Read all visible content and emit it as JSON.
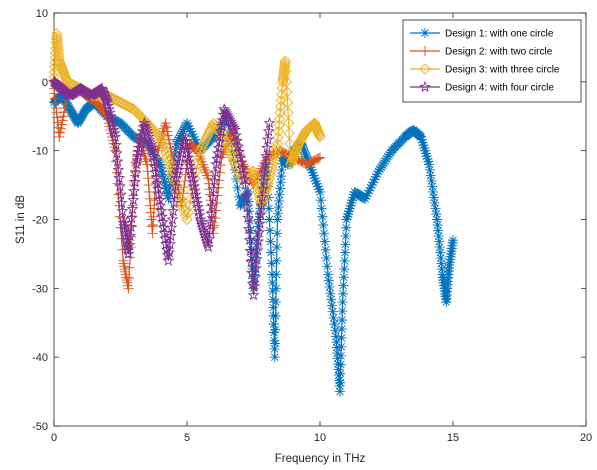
{
  "chart_data": {
    "type": "line",
    "title": "",
    "xlabel": "Frequency in THz",
    "ylabel": "S11 in dB",
    "xlim": [
      0,
      20
    ],
    "ylim": [
      -50,
      10
    ],
    "xticks": [
      0,
      5,
      10,
      15,
      20
    ],
    "yticks": [
      -50,
      -40,
      -30,
      -20,
      -10,
      0,
      10
    ],
    "grid": false,
    "legend_position": "top-right",
    "series": [
      {
        "name": "Design 1: with one circle",
        "color": "#0072BD",
        "marker": "asterisk",
        "x": [
          0,
          0.3,
          0.6,
          0.9,
          1.2,
          1.5,
          2.0,
          2.5,
          3.0,
          3.5,
          4.0,
          4.3,
          4.6,
          5.0,
          5.5,
          6.0,
          6.5,
          7.0,
          7.3,
          7.5,
          7.7,
          8.0,
          8.2,
          8.3,
          8.4,
          8.6,
          8.8,
          9.0,
          9.3,
          9.6,
          10.0,
          10.3,
          10.6,
          10.75,
          10.85,
          11.0,
          11.3,
          11.7,
          12.2,
          12.7,
          13.2,
          13.5,
          13.8,
          14.1,
          14.4,
          14.6,
          14.75,
          14.85,
          15.0
        ],
        "y": [
          -3,
          -2,
          -4,
          -6,
          -4,
          -3,
          -5,
          -6,
          -8,
          -9,
          -12,
          -17,
          -9,
          -6,
          -10,
          -8,
          -5,
          -18,
          -16,
          -30,
          -20,
          -12,
          -28,
          -40,
          -20,
          -11,
          -12,
          -10,
          -9,
          -12,
          -16,
          -28,
          -37,
          -45,
          -32,
          -20,
          -16,
          -17,
          -13,
          -10,
          -8,
          -7,
          -8,
          -12,
          -20,
          -28,
          -32,
          -27,
          -23
        ]
      },
      {
        "name": "Design 2: with two circle",
        "color": "#D95319",
        "marker": "plus",
        "x": [
          0,
          0.2,
          0.5,
          0.9,
          1.2,
          1.6,
          2.0,
          2.3,
          2.6,
          2.8,
          3.0,
          3.2,
          3.5,
          3.7,
          3.9,
          4.2,
          4.5,
          4.8,
          5.1,
          5.4,
          5.8,
          6.0,
          6.3,
          6.7,
          7.1,
          7.5,
          8.0,
          8.5,
          9.0,
          9.5,
          10.0
        ],
        "y": [
          -1,
          -8,
          -2,
          -1,
          -2,
          -3,
          -5,
          -10,
          -26,
          -30,
          -15,
          -8,
          -12,
          -22,
          -10,
          -6,
          -12,
          -18,
          -9,
          -10,
          -14,
          -22,
          -11,
          -7,
          -12,
          -15,
          -11,
          -10,
          -11,
          -12,
          -11
        ]
      },
      {
        "name": "Design 3: with three circle",
        "color": "#EDB120",
        "marker": "diamond",
        "x": [
          0,
          0.1,
          0.2,
          0.5,
          1.0,
          1.5,
          2.0,
          2.5,
          3.0,
          3.5,
          4.0,
          4.5,
          5.0,
          5.5,
          6.0,
          6.5,
          7.0,
          7.5,
          7.8,
          8.1,
          8.4,
          8.6,
          8.7,
          8.9,
          9.2,
          9.5,
          9.8,
          10.0
        ],
        "y": [
          0,
          7,
          3,
          0,
          -1,
          -2,
          -2,
          -3,
          -4,
          -6,
          -8,
          -14,
          -20,
          -10,
          -6,
          -9,
          -14,
          -13,
          -18,
          -14,
          -9,
          0,
          3,
          -12,
          -9,
          -7,
          -6,
          -8
        ]
      },
      {
        "name": "Design 4: with four circle",
        "color": "#7E2F8E",
        "marker": "pentagram",
        "x": [
          0,
          0.3,
          0.6,
          1.0,
          1.4,
          1.8,
          2.0,
          2.3,
          2.6,
          2.8,
          3.1,
          3.4,
          3.7,
          4.0,
          4.3,
          4.6,
          4.9,
          5.2,
          5.5,
          5.8,
          6.1,
          6.4,
          6.8,
          7.2,
          7.5,
          7.8,
          8.1
        ],
        "y": [
          0,
          -1,
          -2,
          -1,
          -2,
          -1,
          -3,
          -8,
          -20,
          -25,
          -12,
          -6,
          -10,
          -18,
          -26,
          -14,
          -8,
          -14,
          -20,
          -24,
          -12,
          -4,
          -7,
          -15,
          -31,
          -18,
          -6
        ]
      }
    ]
  }
}
